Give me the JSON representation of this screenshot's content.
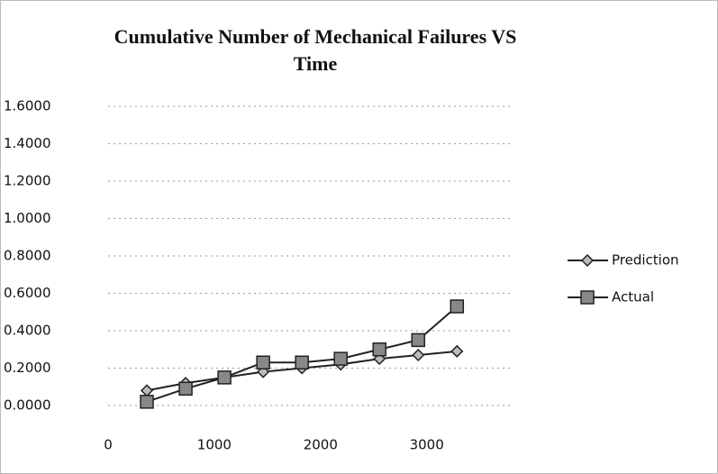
{
  "chart_data": {
    "type": "line",
    "title": "Cumulative Number of Mechanical Failures VS Time",
    "x": [
      365,
      730,
      1095,
      1460,
      1825,
      2190,
      2555,
      2920,
      3285
    ],
    "series": [
      {
        "name": "Prediction",
        "color": "#222222",
        "marker": "diamond",
        "values": [
          0.08,
          0.12,
          0.15,
          0.18,
          0.2,
          0.22,
          0.25,
          0.27,
          0.29
        ]
      },
      {
        "name": "Actual",
        "color": "#222222",
        "marker": "square",
        "values": [
          0.02,
          0.09,
          0.15,
          0.23,
          0.23,
          0.25,
          0.3,
          0.35,
          0.53
        ]
      }
    ],
    "xlim": [
      0,
      3800
    ],
    "xticks": [
      0,
      1000,
      2000,
      3000
    ],
    "ylim": [
      0,
      1.6
    ],
    "yticks": [
      {
        "value": 0,
        "label": "0.0000"
      },
      {
        "value": 0.2,
        "label": "0.2000"
      },
      {
        "value": 0.4,
        "label": "0.4000"
      },
      {
        "value": 0.6,
        "label": "0.6000"
      },
      {
        "value": 0.8,
        "label": "0.8000"
      },
      {
        "value": 1.0,
        "label": "1.0000"
      },
      {
        "value": 1.2,
        "label": "1.2000"
      },
      {
        "value": 1.4,
        "label": "1.4000"
      },
      {
        "value": 1.6,
        "label": "1.6000"
      }
    ],
    "grid": true,
    "legend": "right"
  }
}
